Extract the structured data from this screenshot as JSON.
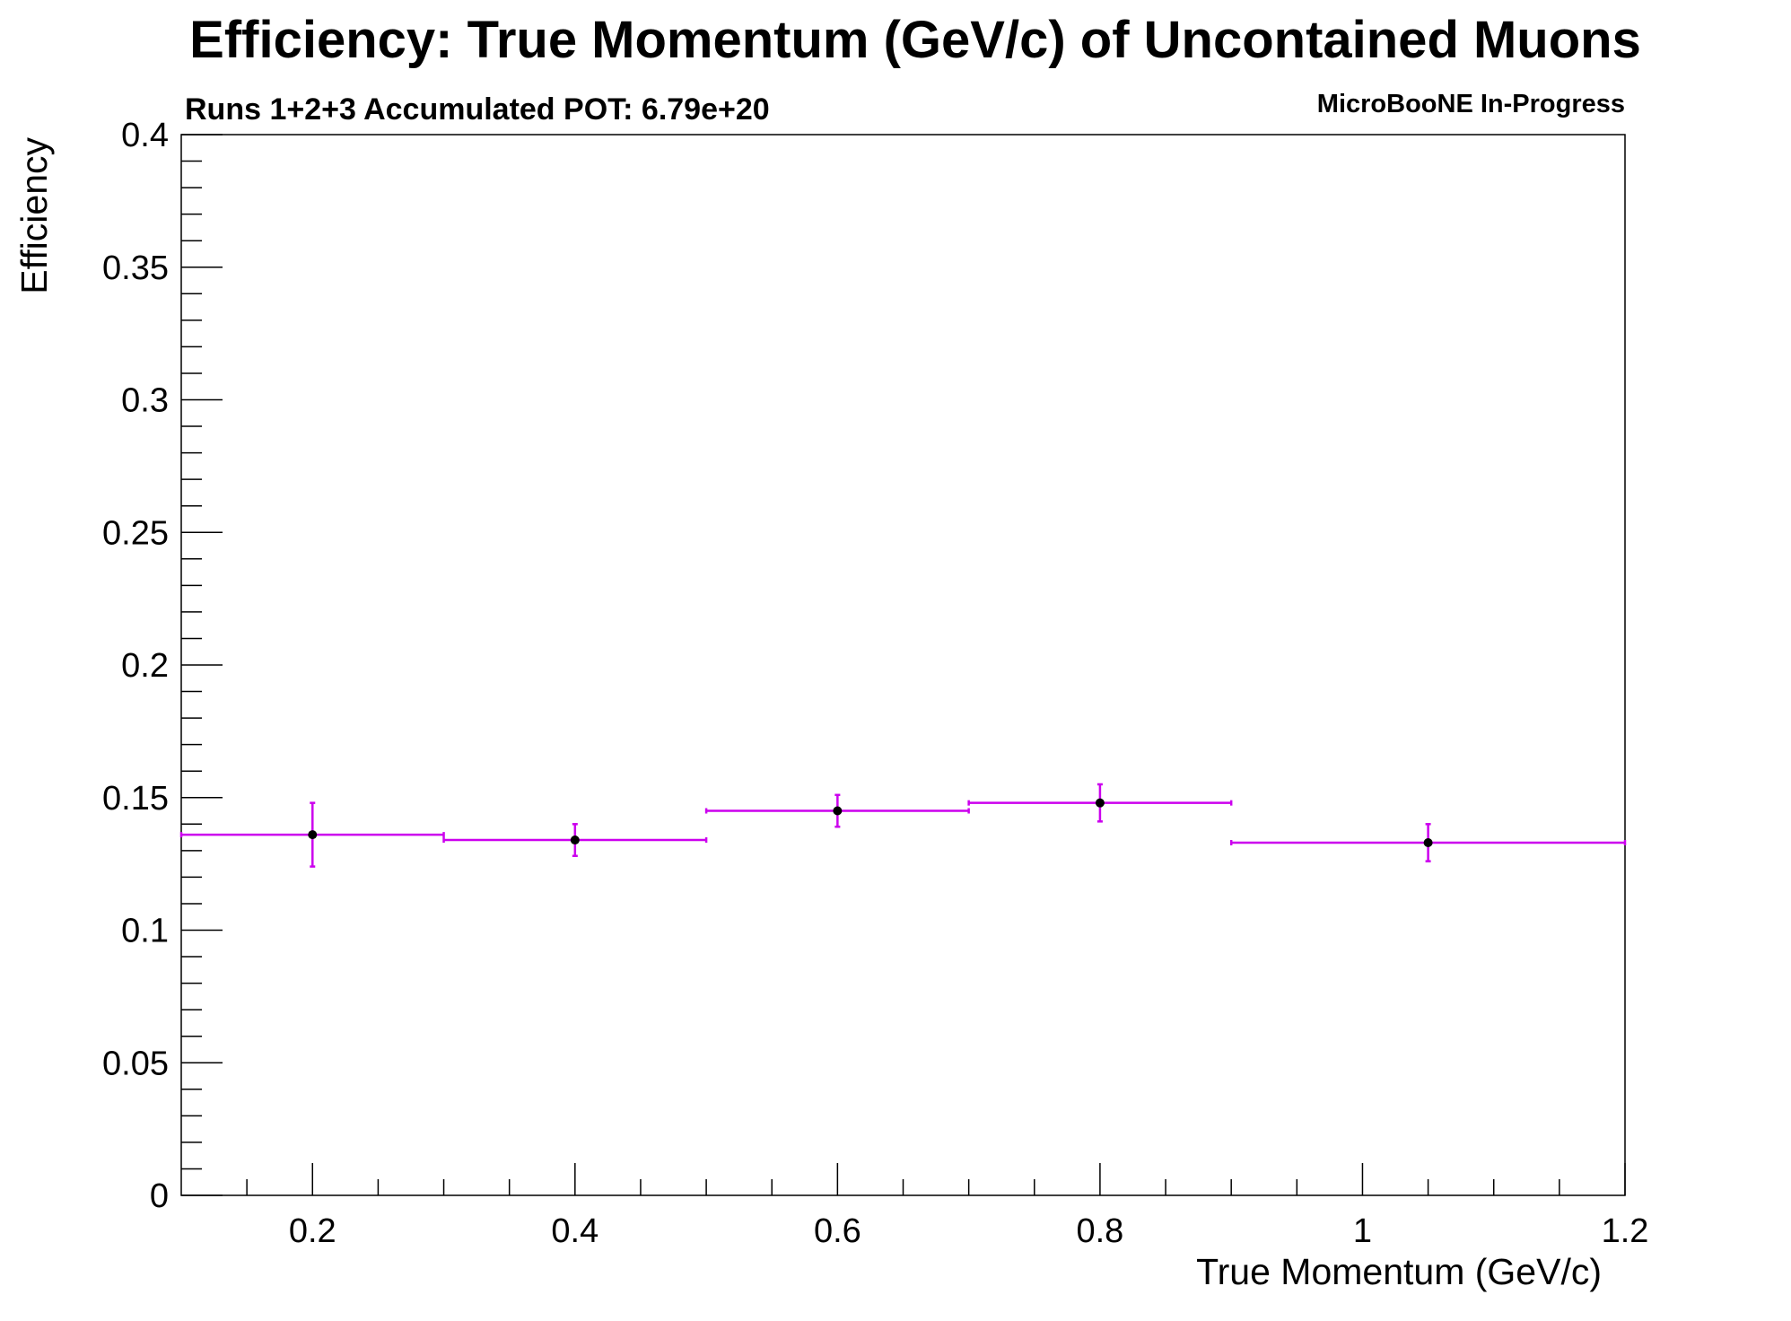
{
  "chart_data": {
    "type": "scatter",
    "title": "Efficiency: True Momentum (GeV/c) of Uncontained Muons",
    "subtitle": "Runs 1+2+3 Accumulated POT: 6.79e+20",
    "tag": "MicroBooNE In-Progress",
    "xlabel": "True Momentum (GeV/c)",
    "ylabel": "Efficiency",
    "xlim": [
      0.1,
      1.2
    ],
    "ylim": [
      0,
      0.4
    ],
    "x_ticks": [
      "0.2",
      "0.4",
      "0.6",
      "0.8",
      "1",
      "1.2"
    ],
    "y_ticks": [
      "0",
      "0.05",
      "0.1",
      "0.15",
      "0.2",
      "0.25",
      "0.3",
      "0.35",
      "0.4"
    ],
    "grid": false,
    "legend": "none",
    "series": [
      {
        "bins": [
          {
            "x": 0.2,
            "xlow": 0.1,
            "xhigh": 0.3,
            "y": 0.136,
            "ylow": 0.124,
            "yhigh": 0.148
          },
          {
            "x": 0.4,
            "xlow": 0.3,
            "xhigh": 0.5,
            "y": 0.134,
            "ylow": 0.128,
            "yhigh": 0.14
          },
          {
            "x": 0.6,
            "xlow": 0.5,
            "xhigh": 0.7,
            "y": 0.145,
            "ylow": 0.139,
            "yhigh": 0.151
          },
          {
            "x": 0.8,
            "xlow": 0.7,
            "xhigh": 0.9,
            "y": 0.148,
            "ylow": 0.141,
            "yhigh": 0.155
          },
          {
            "x": 1.05,
            "xlow": 0.9,
            "xhigh": 1.2,
            "y": 0.133,
            "ylow": 0.126,
            "yhigh": 0.14
          }
        ]
      }
    ],
    "colors": {
      "error_bar": "#cc00ee",
      "marker": "#000000",
      "axes": "#000000"
    }
  }
}
